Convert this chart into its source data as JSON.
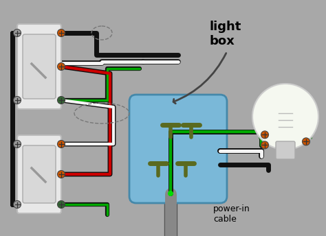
{
  "bg_color": "#a8a8a8",
  "labels": {
    "light_box": "light\nbox",
    "power_in": "power-in\ncable"
  },
  "colors": {
    "black": "#111111",
    "white": "#f5f5f5",
    "red": "#cc0000",
    "green": "#00aa00",
    "bright_green": "#00dd00",
    "switch_body": "#f0f0f0",
    "box_fill": "#7ab8d8",
    "box_edge": "#4488aa",
    "olive": "#5a6a20",
    "orange": "#cc5500",
    "light_green": "#77cc00",
    "dark_green": "#007700",
    "gray_wire": "#888888",
    "screw_gray": "#999999"
  }
}
